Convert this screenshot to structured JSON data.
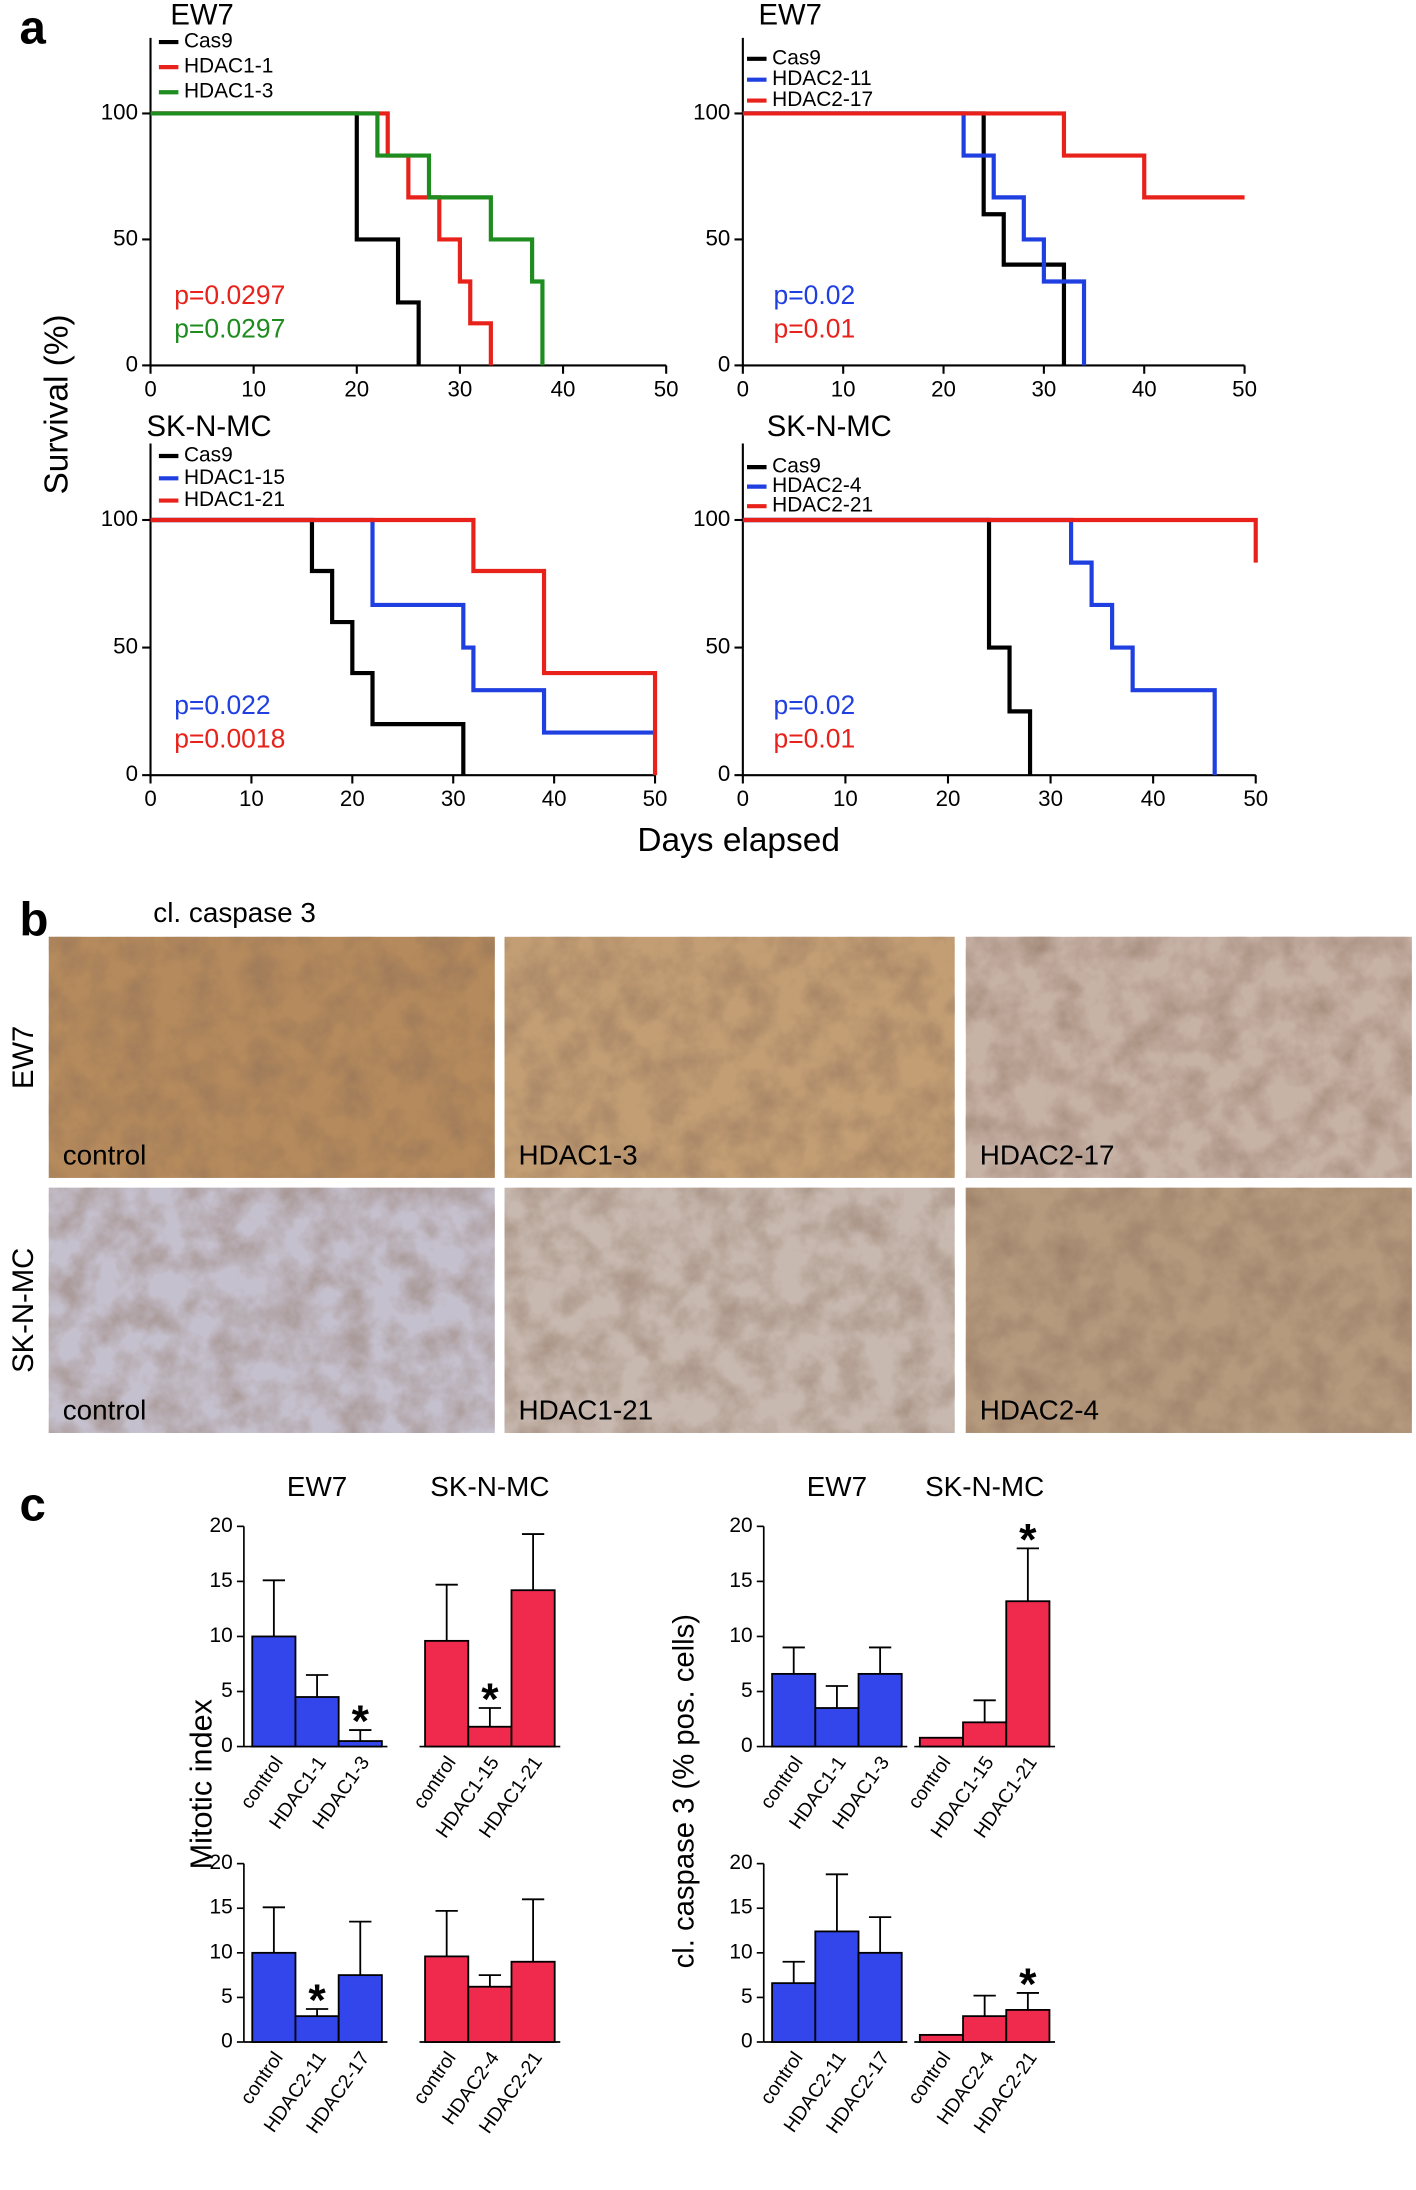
{
  "panel_labels": [
    "a",
    "b",
    "c"
  ],
  "axis_titles": {
    "survival_y": "Survival (%)",
    "survival_x": "Days elapsed",
    "mitotic_y": "Mitotic index",
    "caspase_y": "cl. caspase 3 (% pos. cells)"
  },
  "chart_data": [
    {
      "type": "survival",
      "title": "EW7",
      "xlim": [
        0,
        50
      ],
      "ylim": [
        0,
        130
      ],
      "xticks": [
        0,
        10,
        20,
        30,
        40,
        50
      ],
      "yticks": [
        0,
        50,
        100
      ],
      "series": [
        {
          "name": "Cas9",
          "color": "#000000",
          "x": [
            0,
            20,
            24,
            26
          ],
          "values": [
            100,
            50,
            25,
            0
          ]
        },
        {
          "name": "HDAC1-1",
          "color": "#e8221b",
          "x": [
            0,
            23,
            25,
            28,
            30,
            31,
            33
          ],
          "values": [
            100,
            83.3,
            66.7,
            50,
            33.3,
            16.7,
            0
          ]
        },
        {
          "name": "HDAC1-3",
          "color": "#1e8c1e",
          "x": [
            0,
            22,
            27,
            33,
            37,
            38
          ],
          "values": [
            100,
            83.3,
            66.7,
            50,
            33.3,
            0
          ]
        }
      ],
      "annotations": [
        {
          "text": "p=0.0297",
          "color": "#e8221b"
        },
        {
          "text": "p=0.0297",
          "color": "#1e8c1e"
        }
      ]
    },
    {
      "type": "survival",
      "title": "EW7",
      "xlim": [
        0,
        50
      ],
      "ylim": [
        0,
        130
      ],
      "xticks": [
        0,
        10,
        20,
        30,
        40,
        50
      ],
      "yticks": [
        0,
        50,
        100
      ],
      "series": [
        {
          "name": "Cas9",
          "color": "#000000",
          "x": [
            0,
            24,
            26,
            32
          ],
          "values": [
            100,
            60,
            40,
            0
          ]
        },
        {
          "name": "HDAC2-11",
          "color": "#1f3fe0",
          "x": [
            0,
            22,
            25,
            28,
            30,
            34
          ],
          "values": [
            100,
            83.3,
            66.7,
            50,
            33.3,
            0
          ]
        },
        {
          "name": "HDAC2-17",
          "color": "#e8221b",
          "x": [
            0,
            32,
            40,
            50
          ],
          "values": [
            100,
            83.3,
            66.7,
            66.7
          ]
        }
      ],
      "annotations": [
        {
          "text": "p=0.02",
          "color": "#1f3fe0"
        },
        {
          "text": "p=0.01",
          "color": "#e8221b"
        }
      ]
    },
    {
      "type": "survival",
      "title": "SK-N-MC",
      "xlim": [
        0,
        50
      ],
      "ylim": [
        0,
        130
      ],
      "xticks": [
        0,
        10,
        20,
        30,
        40,
        50
      ],
      "yticks": [
        0,
        50,
        100
      ],
      "series": [
        {
          "name": "Cas9",
          "color": "#000000",
          "x": [
            0,
            16,
            18,
            20,
            22,
            31
          ],
          "values": [
            100,
            80,
            60,
            40,
            20,
            0
          ]
        },
        {
          "name": "HDAC1-15",
          "color": "#1f3fe0",
          "x": [
            0,
            22,
            31,
            32,
            39,
            50
          ],
          "values": [
            100,
            66.7,
            50,
            33.3,
            16.7,
            16.7
          ]
        },
        {
          "name": "HDAC1-21",
          "color": "#e8221b",
          "x": [
            0,
            32,
            39,
            50
          ],
          "values": [
            100,
            80,
            40,
            0
          ]
        }
      ],
      "annotations": [
        {
          "text": "p=0.022",
          "color": "#1f3fe0"
        },
        {
          "text": "p=0.0018",
          "color": "#e8221b"
        }
      ]
    },
    {
      "type": "survival",
      "title": "SK-N-MC",
      "xlim": [
        0,
        50
      ],
      "ylim": [
        0,
        130
      ],
      "xticks": [
        0,
        10,
        20,
        30,
        40,
        50
      ],
      "yticks": [
        0,
        50,
        100
      ],
      "series": [
        {
          "name": "Cas9",
          "color": "#000000",
          "x": [
            0,
            24,
            26,
            28
          ],
          "values": [
            100,
            50,
            25,
            0
          ]
        },
        {
          "name": "HDAC2-4",
          "color": "#1f3fe0",
          "x": [
            0,
            32,
            34,
            36,
            38,
            46
          ],
          "values": [
            100,
            83.3,
            66.7,
            50,
            33.3,
            0
          ]
        },
        {
          "name": "HDAC2-21",
          "color": "#e8221b",
          "x": [
            0,
            50
          ],
          "values": [
            100,
            83.3
          ]
        }
      ],
      "annotations": [
        {
          "text": "p=0.02",
          "color": "#1f3fe0"
        },
        {
          "text": "p=0.01",
          "color": "#e8221b"
        }
      ]
    },
    {
      "type": "bar",
      "ylim": [
        0,
        20
      ],
      "yticks": [
        0,
        5,
        10,
        15,
        20
      ],
      "marker": "*",
      "series": [
        {
          "name": "EW7",
          "color": "#3346ec",
          "categories": [
            "control",
            "HDAC1-1",
            "HDAC1-3"
          ],
          "values": [
            10,
            4.5,
            0.5
          ],
          "errors": [
            5.1,
            2,
            1
          ],
          "significant": [
            false,
            false,
            true
          ]
        },
        {
          "name": "SK-N-MC",
          "color": "#f02a4c",
          "categories": [
            "control",
            "HDAC1-15",
            "HDAC1-21"
          ],
          "values": [
            9.6,
            1.8,
            14.2
          ],
          "errors": [
            5.1,
            1.7,
            5.1
          ],
          "significant": [
            false,
            true,
            false
          ]
        }
      ]
    },
    {
      "type": "bar",
      "ylim": [
        0,
        20
      ],
      "yticks": [
        0,
        5,
        10,
        15,
        20
      ],
      "marker": "*",
      "series": [
        {
          "name": "EW7",
          "color": "#3346ec",
          "categories": [
            "control",
            "HDAC1-1",
            "HDAC1-3"
          ],
          "values": [
            6.6,
            3.5,
            6.6
          ],
          "errors": [
            2.4,
            2,
            2.4
          ],
          "significant": [
            false,
            false,
            false
          ]
        },
        {
          "name": "SK-N-MC",
          "color": "#f02a4c",
          "categories": [
            "control",
            "HDAC1-15",
            "HDAC1-21"
          ],
          "values": [
            0.8,
            2.2,
            13.2
          ],
          "errors": [
            null,
            2,
            4.8
          ],
          "significant": [
            false,
            false,
            true
          ]
        }
      ]
    },
    {
      "type": "bar",
      "ylim": [
        0,
        20
      ],
      "yticks": [
        0,
        5,
        10,
        15,
        20
      ],
      "marker": "*",
      "series": [
        {
          "color": "#3346ec",
          "categories": [
            "control",
            "HDAC2-11",
            "HDAC2-17"
          ],
          "values": [
            10,
            2.9,
            7.5
          ],
          "errors": [
            5.1,
            0.8,
            6
          ],
          "significant": [
            false,
            true,
            false
          ]
        },
        {
          "color": "#f02a4c",
          "categories": [
            "control",
            "HDAC2-4",
            "HDAC2-21"
          ],
          "values": [
            9.6,
            6.2,
            9
          ],
          "errors": [
            5.1,
            1.3,
            7
          ],
          "significant": [
            false,
            false,
            false
          ]
        }
      ]
    },
    {
      "type": "bar",
      "ylim": [
        0,
        20
      ],
      "yticks": [
        0,
        5,
        10,
        15,
        20
      ],
      "marker": "*",
      "series": [
        {
          "color": "#3346ec",
          "categories": [
            "control",
            "HDAC2-11",
            "HDAC2-17"
          ],
          "values": [
            6.6,
            12.4,
            10
          ],
          "errors": [
            2.4,
            6.4,
            4
          ],
          "significant": [
            false,
            false,
            false
          ]
        },
        {
          "color": "#f02a4c",
          "categories": [
            "control",
            "HDAC2-4",
            "HDAC2-21"
          ],
          "values": [
            0.8,
            2.9,
            3.6
          ],
          "errors": [
            null,
            2.3,
            1.9
          ],
          "significant": [
            false,
            false,
            true
          ]
        }
      ]
    }
  ],
  "histology": {
    "title": "cl. caspase 3",
    "rows": [
      {
        "label": "EW7",
        "images": [
          "control",
          "HDAC1-3",
          "HDAC2-17"
        ]
      },
      {
        "label": "SK-N-MC",
        "images": [
          "control",
          "HDAC1-21",
          "HDAC2-4"
        ]
      }
    ]
  }
}
